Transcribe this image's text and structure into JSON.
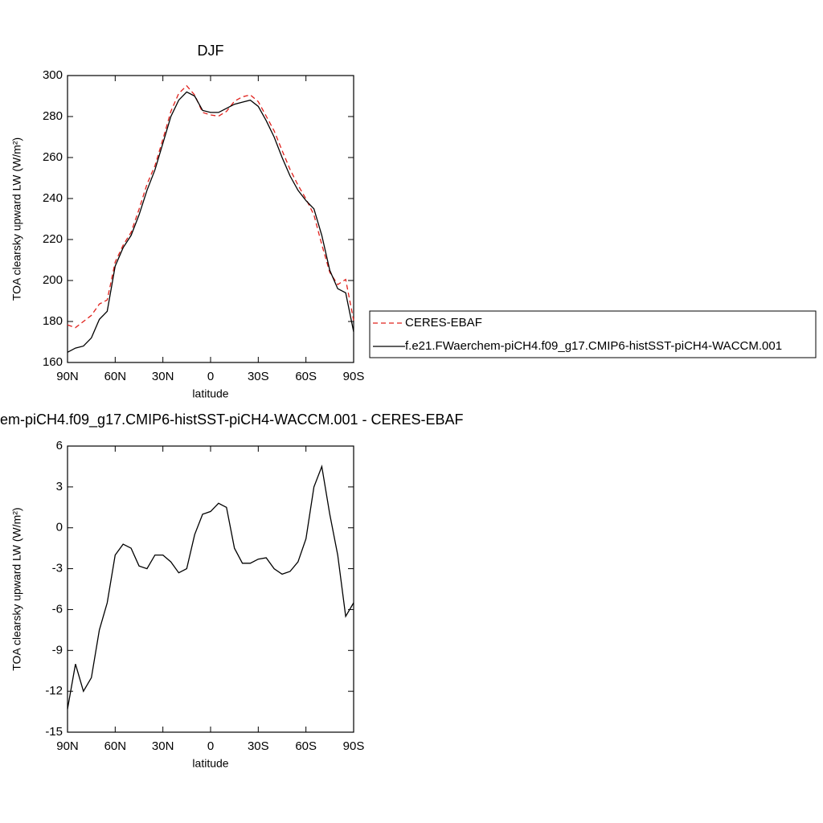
{
  "chart_data": [
    {
      "type": "line",
      "title": "DJF",
      "xlabel": "latitude",
      "ylabel": "TOA clearsky upward LW (W/m²)",
      "x": [
        90,
        85,
        80,
        75,
        70,
        65,
        60,
        55,
        50,
        45,
        40,
        35,
        30,
        25,
        20,
        15,
        10,
        5,
        0,
        -5,
        -10,
        -15,
        -20,
        -25,
        -30,
        -35,
        -40,
        -45,
        -50,
        -55,
        -60,
        -65,
        -70,
        -75,
        -80,
        -85,
        -90
      ],
      "series": [
        {
          "name": "CERES-EBAF",
          "color": "#e0201b",
          "dash": true,
          "values": [
            178.3,
            177,
            180,
            183,
            188.5,
            190.5,
            209,
            217.2,
            223.5,
            234.8,
            247,
            256,
            269,
            282.5,
            291.3,
            295,
            290.5,
            282,
            280.8,
            280.2,
            282.5,
            287.5,
            289.6,
            290.6,
            287.3,
            280.2,
            273,
            263.4,
            254.2,
            246.5,
            239.8,
            232,
            217.5,
            204,
            198,
            200.5,
            180.5
          ]
        },
        {
          "name": "f.e21.FWaerchem-piCH4.f09_g17.CMIP6-histSST-piCH4-WACCM.001",
          "color": "#000000",
          "dash": false,
          "values": [
            165,
            167,
            168,
            172,
            181,
            185,
            207,
            216,
            222,
            232,
            244,
            254,
            267,
            280,
            288,
            292,
            290,
            283,
            282,
            282,
            284,
            286,
            287,
            288,
            285,
            278,
            270,
            260,
            251,
            244,
            239,
            235,
            222,
            205,
            196,
            194,
            175
          ]
        }
      ],
      "xlim": [
        90,
        -90
      ],
      "xticks": [
        {
          "value": 90,
          "label": "90N"
        },
        {
          "value": 60,
          "label": "60N"
        },
        {
          "value": 30,
          "label": "30N"
        },
        0,
        {
          "value": -30,
          "label": "30S"
        },
        {
          "value": -60,
          "label": "60S"
        },
        {
          "value": -90,
          "label": "90S"
        }
      ],
      "ylim": [
        160,
        300
      ],
      "yticks": [
        160,
        180,
        200,
        220,
        240,
        260,
        280,
        300
      ],
      "legend": "right"
    },
    {
      "type": "line",
      "title": "em-piCH4.f09_g17.CMIP6-histSST-piCH4-WACCM.001 - CERES-EBAF",
      "xlabel": "latitude",
      "ylabel": "TOA clearsky upward LW (W/m²)",
      "x": [
        90,
        85,
        80,
        75,
        70,
        65,
        60,
        55,
        50,
        45,
        40,
        35,
        30,
        25,
        20,
        15,
        10,
        5,
        0,
        -5,
        -10,
        -15,
        -20,
        -25,
        -30,
        -35,
        -40,
        -45,
        -50,
        -55,
        -60,
        -65,
        -70,
        -75,
        -80,
        -85,
        -90
      ],
      "series": [
        {
          "color": "#000000",
          "dash": false,
          "values": [
            -13.3,
            -10,
            -12,
            -11,
            -7.5,
            -5.5,
            -2,
            -1.2,
            -1.5,
            -2.8,
            -3,
            -2,
            -2,
            -2.5,
            -3.3,
            -3,
            -0.5,
            1,
            1.2,
            1.8,
            1.5,
            -1.5,
            -2.6,
            -2.6,
            -2.3,
            -2.2,
            -3,
            -3.4,
            -3.2,
            -2.5,
            -0.8,
            3,
            4.5,
            1,
            -2,
            -6.5,
            -5.5
          ]
        }
      ],
      "xlim": [
        90,
        -90
      ],
      "xticks": [
        {
          "value": 90,
          "label": "90N"
        },
        {
          "value": 60,
          "label": "60N"
        },
        {
          "value": 30,
          "label": "30N"
        },
        0,
        {
          "value": -30,
          "label": "30S"
        },
        {
          "value": -60,
          "label": "60S"
        },
        {
          "value": -90,
          "label": "90S"
        }
      ],
      "ylim": [
        -15,
        6
      ],
      "yticks": [
        -15,
        -12,
        -9,
        -6,
        -3,
        0,
        3,
        6
      ]
    }
  ]
}
